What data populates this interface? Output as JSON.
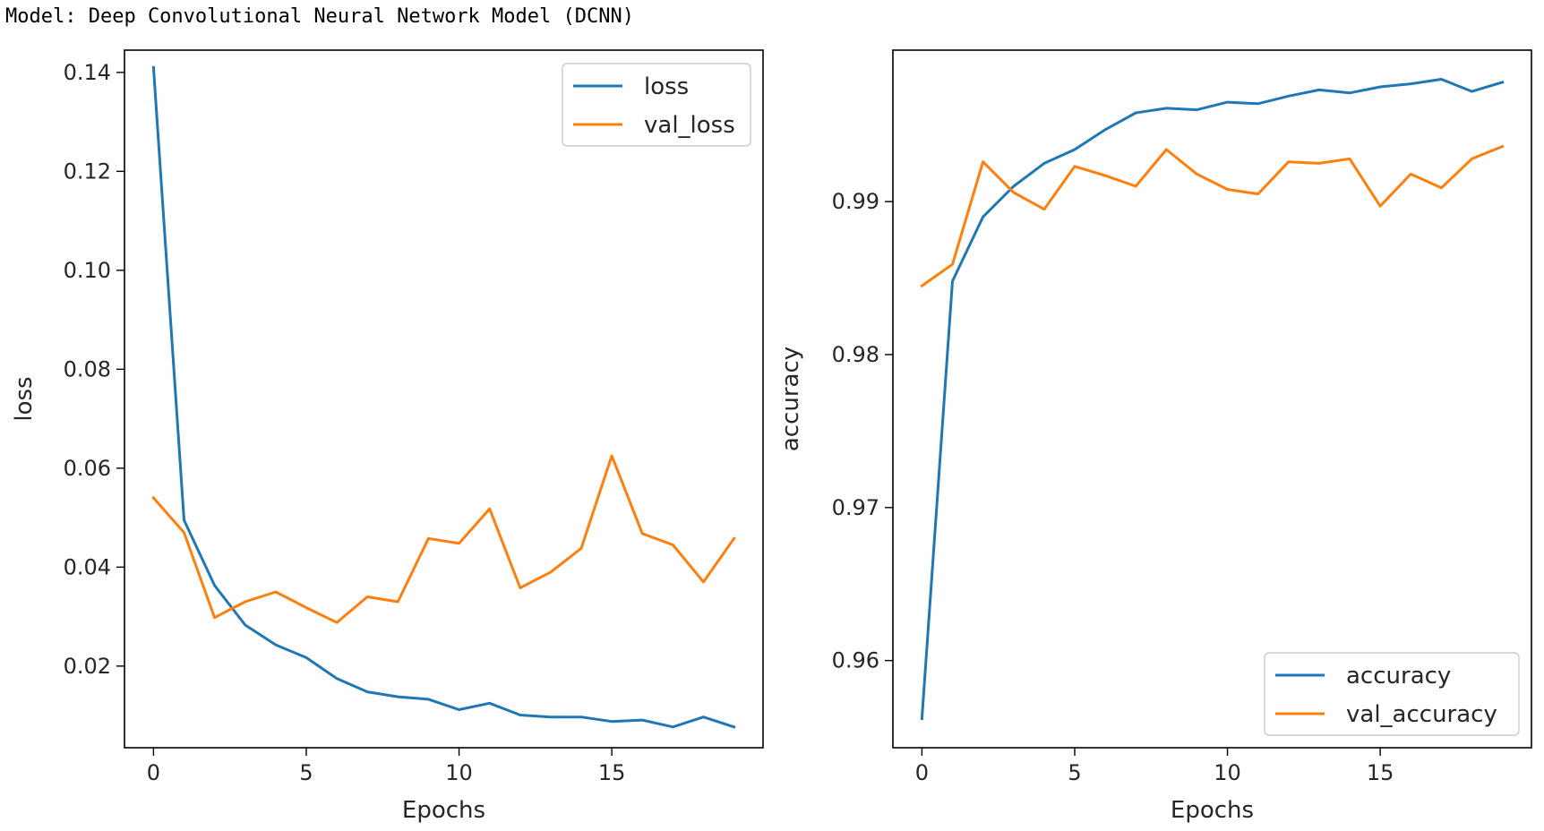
{
  "page": {
    "title": "Model: Deep Convolutional Neural Network Model (DCNN)"
  },
  "chart_data": [
    {
      "type": "line",
      "xlabel": "Epochs",
      "ylabel": "loss",
      "x": [
        0,
        1,
        2,
        3,
        4,
        5,
        6,
        7,
        8,
        9,
        10,
        11,
        12,
        13,
        14,
        15,
        16,
        17,
        18,
        19
      ],
      "xlim": [
        -0.95,
        19.95
      ],
      "ylim": [
        0.0035,
        0.1445
      ],
      "xticks": [
        0,
        5,
        10,
        15
      ],
      "xtick_labels": [
        "0",
        "5",
        "10",
        "15"
      ],
      "yticks": [
        0.02,
        0.04,
        0.06,
        0.08,
        0.1,
        0.12,
        0.14
      ],
      "ytick_labels": [
        "0.02",
        "0.04",
        "0.06",
        "0.08",
        "0.10",
        "0.12",
        "0.14"
      ],
      "legend": "upper-right",
      "grid": false,
      "series": [
        {
          "name": "loss",
          "color": "#1f77b4",
          "values": [
            0.141,
            0.0495,
            0.0363,
            0.0283,
            0.0243,
            0.0217,
            0.0175,
            0.0148,
            0.0138,
            0.0133,
            0.0112,
            0.0125,
            0.0101,
            0.0097,
            0.0097,
            0.0088,
            0.0091,
            0.0077,
            0.0097,
            0.0077
          ]
        },
        {
          "name": "val_loss",
          "color": "#ff7f0e",
          "values": [
            0.054,
            0.047,
            0.0298,
            0.033,
            0.035,
            0.0318,
            0.0288,
            0.034,
            0.033,
            0.0458,
            0.0448,
            0.0518,
            0.0358,
            0.039,
            0.0438,
            0.0625,
            0.0468,
            0.0445,
            0.037,
            0.0458
          ]
        }
      ]
    },
    {
      "type": "line",
      "xlabel": "Epochs",
      "ylabel": "accuracy",
      "x": [
        0,
        1,
        2,
        3,
        4,
        5,
        6,
        7,
        8,
        9,
        10,
        11,
        12,
        13,
        14,
        15,
        16,
        17,
        18,
        19
      ],
      "xlim": [
        -0.95,
        19.95
      ],
      "ylim": [
        0.9543,
        0.9999
      ],
      "xticks": [
        0,
        5,
        10,
        15
      ],
      "xtick_labels": [
        "0",
        "5",
        "10",
        "15"
      ],
      "yticks": [
        0.96,
        0.97,
        0.98,
        0.99
      ],
      "ytick_labels": [
        "0.96",
        "0.97",
        "0.98",
        "0.99"
      ],
      "legend": "lower-right",
      "grid": false,
      "series": [
        {
          "name": "accuracy",
          "color": "#1f77b4",
          "values": [
            0.9562,
            0.9848,
            0.989,
            0.991,
            0.9925,
            0.9934,
            0.9947,
            0.9958,
            0.9961,
            0.996,
            0.9965,
            0.9964,
            0.9969,
            0.9973,
            0.9971,
            0.9975,
            0.9977,
            0.998,
            0.9972,
            0.9978
          ]
        },
        {
          "name": "val_accuracy",
          "color": "#ff7f0e",
          "values": [
            0.9845,
            0.9859,
            0.9926,
            0.9906,
            0.9895,
            0.9923,
            0.9917,
            0.991,
            0.9934,
            0.9918,
            0.9908,
            0.9905,
            0.9926,
            0.9925,
            0.9928,
            0.9897,
            0.9918,
            0.9909,
            0.9928,
            0.9936
          ]
        }
      ]
    }
  ]
}
